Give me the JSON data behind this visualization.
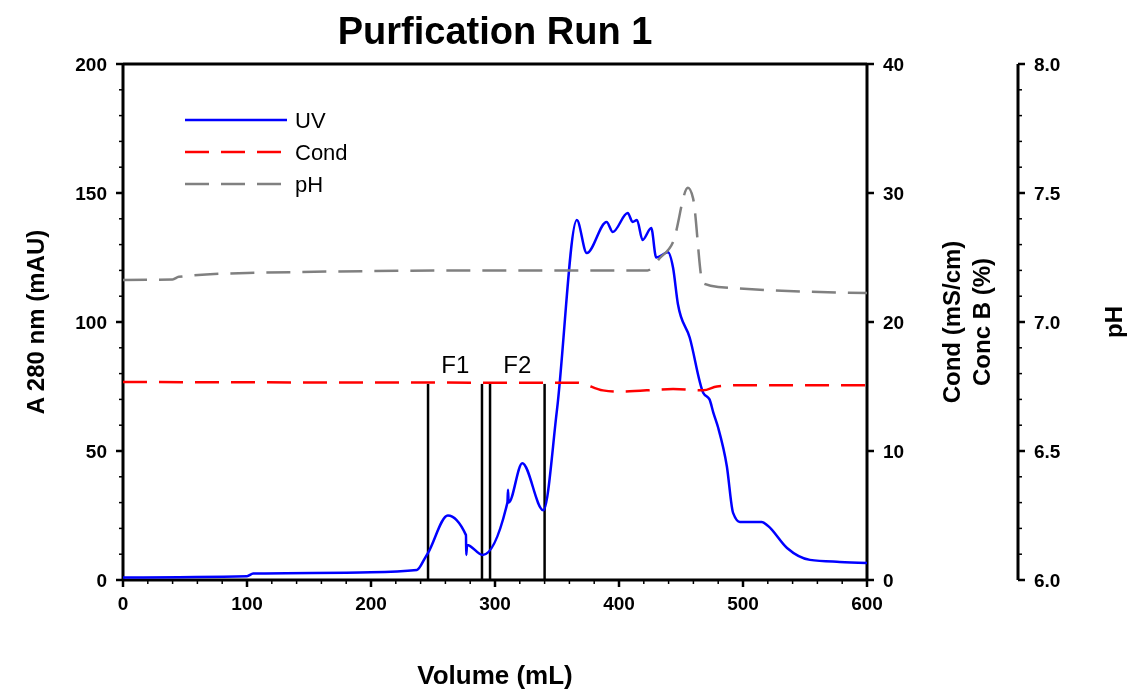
{
  "chart_data": {
    "type": "line",
    "title": "Purfication Run 1",
    "xlabel": "Volume (mL)",
    "ylabel": "A 280 nm (mAU)",
    "y2label": "Cond (mS/cm)\nConc B (%)",
    "y3label": "pH",
    "xlim": [
      0,
      600
    ],
    "ylim": [
      0,
      200
    ],
    "y2lim": [
      0,
      40
    ],
    "y3lim": [
      6,
      8
    ],
    "xticks": [
      0,
      {
        "value": 20,
        "label": null
      },
      {
        "value": 40,
        "label": null
      },
      {
        "value": 60,
        "label": null
      },
      {
        "value": 80,
        "label": null
      },
      100,
      {
        "value": 120,
        "label": null
      },
      {
        "value": 140,
        "label": null
      },
      {
        "value": 160,
        "label": null
      },
      {
        "value": 180,
        "label": null
      },
      200,
      {
        "value": 220,
        "label": null
      },
      {
        "value": 240,
        "label": null
      },
      {
        "value": 260,
        "label": null
      },
      {
        "value": 280,
        "label": null
      },
      300,
      {
        "value": 320,
        "label": null
      },
      {
        "value": 340,
        "label": null
      },
      {
        "value": 360,
        "label": null
      },
      {
        "value": 380,
        "label": null
      },
      400,
      {
        "value": 420,
        "label": null
      },
      {
        "value": 440,
        "label": null
      },
      {
        "value": 460,
        "label": null
      },
      {
        "value": 480,
        "label": null
      },
      500,
      {
        "value": 520,
        "label": null
      },
      {
        "value": 540,
        "label": null
      },
      {
        "value": 560,
        "label": null
      },
      {
        "value": 580,
        "label": null
      },
      600
    ],
    "yticks": [
      0,
      {
        "value": 10,
        "label": null
      },
      {
        "value": 20,
        "label": null
      },
      {
        "value": 30,
        "label": null
      },
      {
        "value": 40,
        "label": null
      },
      50,
      {
        "value": 60,
        "label": null
      },
      {
        "value": 70,
        "label": null
      },
      {
        "value": 80,
        "label": null
      },
      {
        "value": 90,
        "label": null
      },
      100,
      {
        "value": 110,
        "label": null
      },
      {
        "value": 120,
        "label": null
      },
      {
        "value": 130,
        "label": null
      },
      {
        "value": 140,
        "label": null
      },
      150,
      {
        "value": 160,
        "label": null
      },
      {
        "value": 170,
        "label": null
      },
      {
        "value": 180,
        "label": null
      },
      {
        "value": 190,
        "label": null
      },
      200
    ],
    "y2ticks": [
      0,
      10,
      20,
      30,
      40
    ],
    "y3ticks": [
      {
        "value": 6,
        "label": "6.0"
      },
      {
        "value": 6.1,
        "label": null
      },
      {
        "value": 6.2,
        "label": null
      },
      {
        "value": 6.3,
        "label": null
      },
      {
        "value": 6.4,
        "label": null
      },
      {
        "value": 6.5,
        "label": "6.5"
      },
      {
        "value": 6.6,
        "label": null
      },
      {
        "value": 6.7,
        "label": null
      },
      {
        "value": 6.8,
        "label": null
      },
      {
        "value": 6.9,
        "label": null
      },
      {
        "value": 7,
        "label": "7.0"
      },
      {
        "value": 7.1,
        "label": null
      },
      {
        "value": 7.2,
        "label": null
      },
      {
        "value": 7.3,
        "label": null
      },
      {
        "value": 7.4,
        "label": null
      },
      {
        "value": 7.5,
        "label": "7.5"
      },
      {
        "value": 7.6,
        "label": null
      },
      {
        "value": 7.7,
        "label": null
      },
      {
        "value": 7.8,
        "label": null
      },
      {
        "value": 7.9,
        "label": null
      },
      {
        "value": 8,
        "label": "8.0"
      }
    ],
    "legend": "top left",
    "grid": false,
    "ref_lines": [
      {
        "axis": "x",
        "value": 246
      },
      {
        "axis": "x",
        "value": 289.5
      },
      {
        "axis": "x",
        "value": 296
      },
      {
        "axis": "x",
        "value": 340
      }
    ],
    "annotations": [
      {
        "text": "F1",
        "x": 268,
        "y": 78
      },
      {
        "text": "F2",
        "x": 318,
        "y": 78
      }
    ],
    "series": [
      {
        "name": "UV",
        "color": "#0000ff",
        "line_style": "solid",
        "x": [
          0,
          100,
          105,
          200,
          237,
          243.5,
          246,
          262,
          276.6,
          276.8,
          277.5,
          290,
          310,
          310.5,
          311,
          322,
          339,
          350,
          366,
          374,
          390,
          395,
          407,
          411,
          414.5,
          419,
          426,
          430,
          439.5,
          443.6,
          447.5,
          457,
          468,
          473,
          476,
          480,
          487,
          492,
          497.5,
          515,
          520,
          535.5,
          554,
          578,
          600
        ],
        "values": [
          1,
          1.5,
          2.5,
          3,
          3.9,
          8.5,
          10.5,
          25,
          17.4,
          9.7,
          13.6,
          9.7,
          30,
          35,
          30,
          45.3,
          27,
          66,
          139.5,
          126.7,
          138.8,
          134.9,
          142.2,
          138.8,
          139.5,
          131.8,
          136.4,
          125,
          127,
          121,
          107,
          94,
          72.5,
          70,
          65,
          59,
          44,
          26,
          22.5,
          22.5,
          21,
          12.4,
          7.8,
          7,
          6.6
        ]
      },
      {
        "name": "Cond",
        "color": "#ff0000",
        "line_style": "dashed",
        "axis": "y2",
        "x": [
          0,
          300,
          350,
          366,
          387,
          401,
          443.6,
          468,
          479,
          497,
          600
        ],
        "values": [
          15.35,
          15.3,
          15.3,
          15.3,
          14.7,
          14.6,
          14.8,
          14.7,
          15,
          15.1,
          15.1
        ]
      },
      {
        "name": "pH",
        "color": "#808080",
        "line_style": "dashed",
        "axis": "y3",
        "x": [
          0,
          40,
          45,
          100,
          300,
          423,
          433,
          443.6,
          455.6,
          459.7,
          467.7,
          480,
          600
        ],
        "values": [
          7.163,
          7.165,
          7.175,
          7.19,
          7.2,
          7.2,
          7.248,
          7.31,
          7.52,
          7.48,
          7.15,
          7.136,
          7.112
        ]
      }
    ]
  }
}
